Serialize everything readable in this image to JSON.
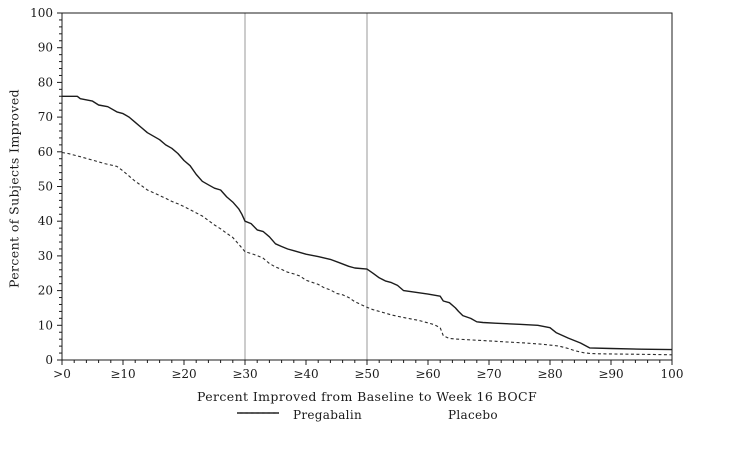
{
  "colors": {
    "frame": "#1c1c1c",
    "series_solid": "#1c1c1c",
    "series_dashed": "#2a2a2a",
    "reference_line": "#9a9a9a",
    "text": "#1a1a1a",
    "background": "#ffffff"
  },
  "chart_data": {
    "type": "line",
    "title": "",
    "xlabel": "Percent Improved from Baseline to Week 16 BOCF",
    "ylabel": "Percent of Subjects Improved",
    "xlim": [
      0,
      100
    ],
    "ylim": [
      0,
      100
    ],
    "grid": "off",
    "legend_position": "bottom-center",
    "x_ticks": [
      {
        "value": 0,
        "label": ">0"
      },
      {
        "value": 10,
        "label": "≥10"
      },
      {
        "value": 20,
        "label": "≥20"
      },
      {
        "value": 30,
        "label": "≥30"
      },
      {
        "value": 40,
        "label": "≥40"
      },
      {
        "value": 50,
        "label": "≥50"
      },
      {
        "value": 60,
        "label": "≥60"
      },
      {
        "value": 70,
        "label": "≥70"
      },
      {
        "value": 80,
        "label": "≥80"
      },
      {
        "value": 90,
        "label": "≥90"
      },
      {
        "value": 100,
        "label": "100"
      }
    ],
    "y_ticks": [
      0,
      10,
      20,
      30,
      40,
      50,
      60,
      70,
      80,
      90,
      100
    ],
    "minor_tick_step": 2,
    "reference_lines_x": [
      30,
      50
    ],
    "series": [
      {
        "name": "Pregabalin",
        "style": "solid",
        "points": [
          [
            0,
            76
          ],
          [
            2.5,
            76
          ],
          [
            3,
            75.3
          ],
          [
            5,
            74.6
          ],
          [
            6,
            73.5
          ],
          [
            7.5,
            73
          ],
          [
            9,
            71.5
          ],
          [
            10,
            71
          ],
          [
            11,
            70
          ],
          [
            12,
            68.5
          ],
          [
            13,
            67
          ],
          [
            14,
            65.5
          ],
          [
            15,
            64.5
          ],
          [
            16,
            63.5
          ],
          [
            17,
            62
          ],
          [
            18,
            61
          ],
          [
            19,
            59.5
          ],
          [
            20,
            57.5
          ],
          [
            21,
            56
          ],
          [
            22,
            53.5
          ],
          [
            23,
            51.5
          ],
          [
            24,
            50.5
          ],
          [
            25,
            49.5
          ],
          [
            26,
            49
          ],
          [
            27,
            47
          ],
          [
            28,
            45.5
          ],
          [
            29,
            43.5
          ],
          [
            29.5,
            42
          ],
          [
            30,
            40
          ],
          [
            31,
            39.3
          ],
          [
            32,
            37.5
          ],
          [
            33,
            37
          ],
          [
            34,
            35.5
          ],
          [
            35,
            33.5
          ],
          [
            36,
            32.7
          ],
          [
            37,
            32
          ],
          [
            38,
            31.5
          ],
          [
            39,
            31
          ],
          [
            40,
            30.5
          ],
          [
            42,
            29.8
          ],
          [
            44,
            29
          ],
          [
            45.5,
            28
          ],
          [
            47,
            27
          ],
          [
            48,
            26.5
          ],
          [
            50,
            26.2
          ],
          [
            51,
            25
          ],
          [
            52,
            23.7
          ],
          [
            53,
            22.8
          ],
          [
            54,
            22.3
          ],
          [
            55,
            21.5
          ],
          [
            56,
            20
          ],
          [
            58,
            19.5
          ],
          [
            60,
            19
          ],
          [
            62,
            18.4
          ],
          [
            62.5,
            17
          ],
          [
            63.5,
            16.5
          ],
          [
            64.5,
            15
          ],
          [
            65,
            14
          ],
          [
            65.7,
            12.8
          ],
          [
            67,
            12
          ],
          [
            68,
            11
          ],
          [
            69,
            10.8
          ],
          [
            71,
            10.6
          ],
          [
            75,
            10.3
          ],
          [
            78,
            10
          ],
          [
            80,
            9.3
          ],
          [
            81,
            7.9
          ],
          [
            83,
            6.3
          ],
          [
            85,
            4.9
          ],
          [
            86.5,
            3.5
          ],
          [
            90,
            3.3
          ],
          [
            95,
            3.1
          ],
          [
            100,
            3
          ]
        ]
      },
      {
        "name": "Placebo",
        "style": "dashed",
        "points": [
          [
            0,
            59.8
          ],
          [
            1,
            59.5
          ],
          [
            3,
            58.6
          ],
          [
            5,
            57.6
          ],
          [
            7,
            56.6
          ],
          [
            8,
            56.2
          ],
          [
            9,
            55.8
          ],
          [
            10,
            54.5
          ],
          [
            11,
            53
          ],
          [
            12,
            51.5
          ],
          [
            13,
            50.3
          ],
          [
            14,
            49
          ],
          [
            15,
            48.2
          ],
          [
            16,
            47.4
          ],
          [
            17,
            46.6
          ],
          [
            18,
            45.7
          ],
          [
            19,
            45
          ],
          [
            20,
            44.2
          ],
          [
            21,
            43.3
          ],
          [
            22,
            42.4
          ],
          [
            23,
            41.5
          ],
          [
            24,
            40.2
          ],
          [
            25,
            38.9
          ],
          [
            26,
            37.8
          ],
          [
            27,
            36.5
          ],
          [
            28,
            35.3
          ],
          [
            29,
            33.3
          ],
          [
            30,
            31.2
          ],
          [
            31,
            30.7
          ],
          [
            32,
            30.1
          ],
          [
            33,
            29.3
          ],
          [
            34,
            27.8
          ],
          [
            35,
            26.8
          ],
          [
            36,
            26.1
          ],
          [
            37,
            25.3
          ],
          [
            38,
            24.8
          ],
          [
            39,
            24.2
          ],
          [
            40,
            23
          ],
          [
            41,
            22.4
          ],
          [
            42,
            21.8
          ],
          [
            43,
            20.8
          ],
          [
            44,
            20.2
          ],
          [
            45,
            19.2
          ],
          [
            46,
            18.8
          ],
          [
            47,
            18
          ],
          [
            48,
            16.8
          ],
          [
            49,
            16
          ],
          [
            50,
            15.2
          ],
          [
            51,
            14.5
          ],
          [
            52,
            14
          ],
          [
            54,
            13
          ],
          [
            55,
            12.6
          ],
          [
            57,
            11.9
          ],
          [
            58.5,
            11.4
          ],
          [
            60,
            10.7
          ],
          [
            61,
            10.2
          ],
          [
            62,
            9.3
          ],
          [
            62.5,
            7
          ],
          [
            63.5,
            6.2
          ],
          [
            65,
            6
          ],
          [
            67,
            5.8
          ],
          [
            70,
            5.5
          ],
          [
            73,
            5.2
          ],
          [
            76,
            4.9
          ],
          [
            79,
            4.5
          ],
          [
            81.5,
            4
          ],
          [
            83,
            3.3
          ],
          [
            84,
            2.7
          ],
          [
            85.5,
            2.1
          ],
          [
            86.5,
            1.9
          ],
          [
            88,
            1.8
          ],
          [
            92,
            1.7
          ],
          [
            96,
            1.6
          ],
          [
            100,
            1.5
          ]
        ]
      }
    ]
  }
}
